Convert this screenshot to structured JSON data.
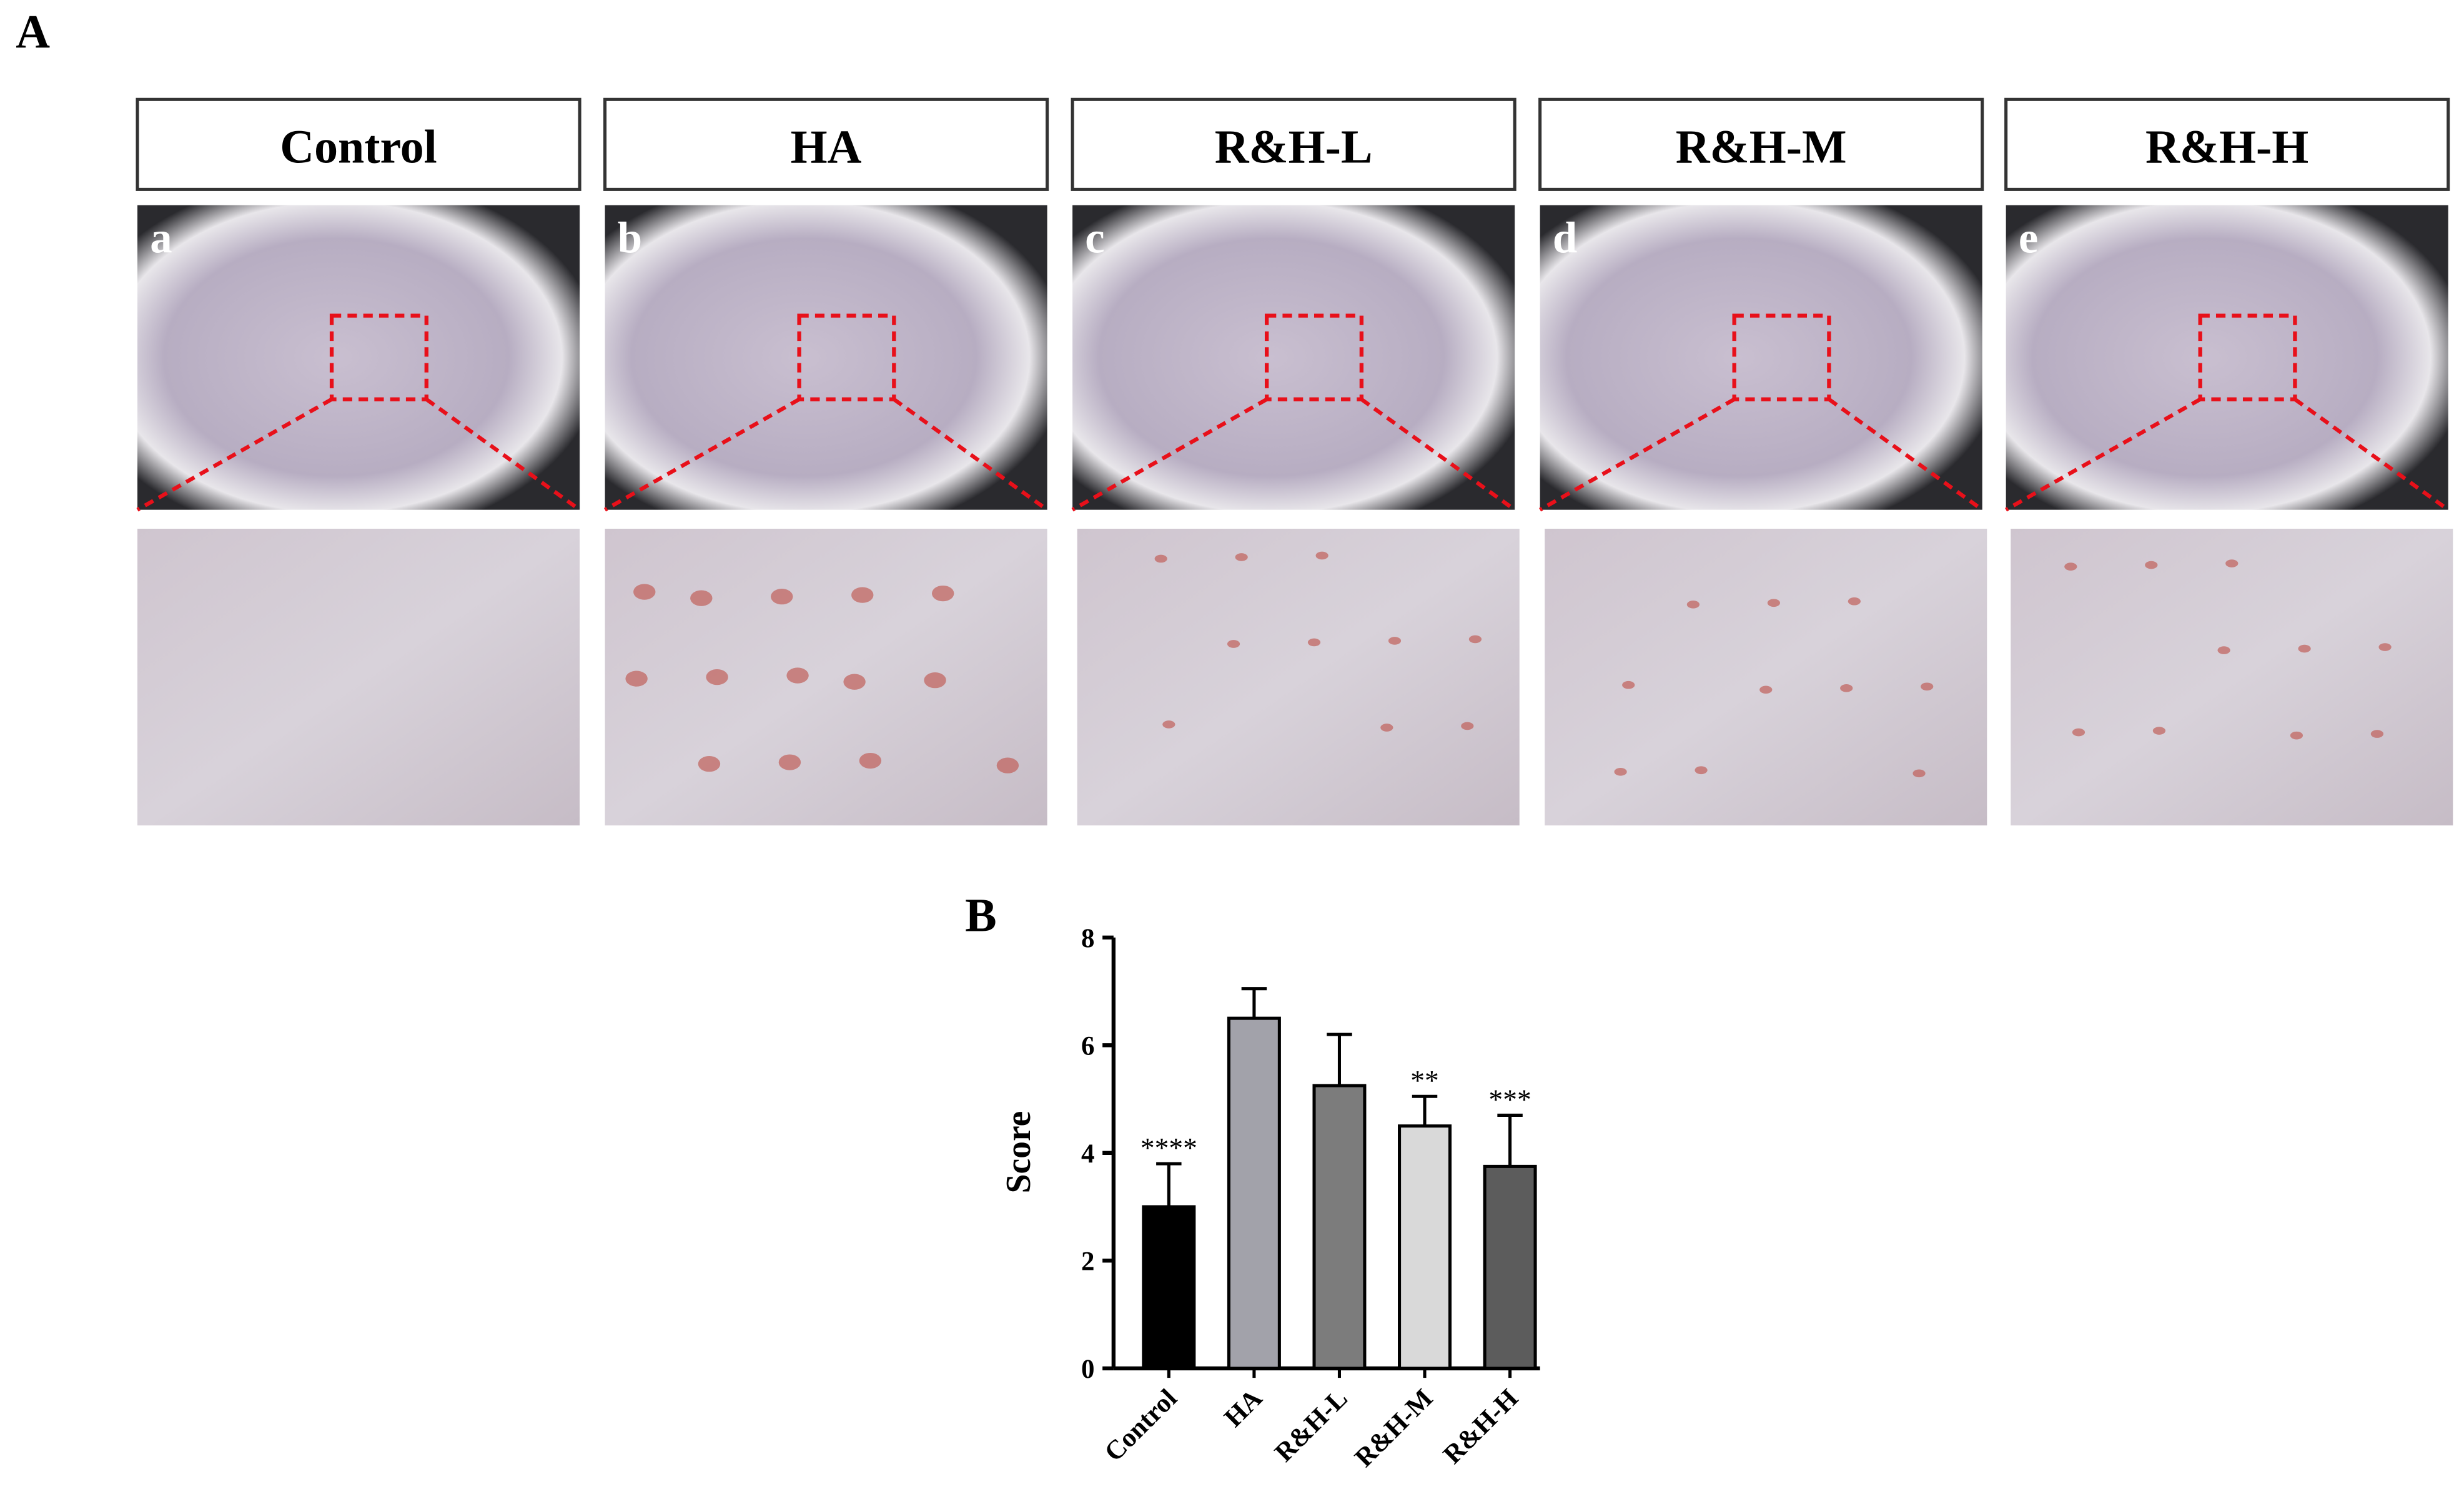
{
  "panel_labels": [
    "A",
    "B"
  ],
  "panels": [
    {
      "group": "Control",
      "letter": "a"
    },
    {
      "group": "HA",
      "letter": "b"
    },
    {
      "group": "R&H-L",
      "letter": "c"
    },
    {
      "group": "R&H-M",
      "letter": "d"
    },
    {
      "group": "R&H-H",
      "letter": "e"
    }
  ],
  "chart_data": {
    "type": "bar",
    "ylabel": "Score",
    "categories": [
      "Control",
      "HA",
      "R&H-L",
      "R&H-M",
      "R&H-H"
    ],
    "values": [
      3.0,
      6.5,
      5.25,
      4.5,
      3.75
    ],
    "errors": [
      0.8,
      0.55,
      0.95,
      0.55,
      0.95
    ],
    "annotations": [
      "****",
      null,
      null,
      "**",
      "***"
    ],
    "colors": [
      "#000000",
      "#a2a2aa",
      "#7c7c7c",
      "#d9d9d9",
      "#5c5c5c"
    ],
    "ylim": [
      0,
      8
    ],
    "yticks": [
      0,
      2,
      4,
      6,
      8
    ]
  }
}
